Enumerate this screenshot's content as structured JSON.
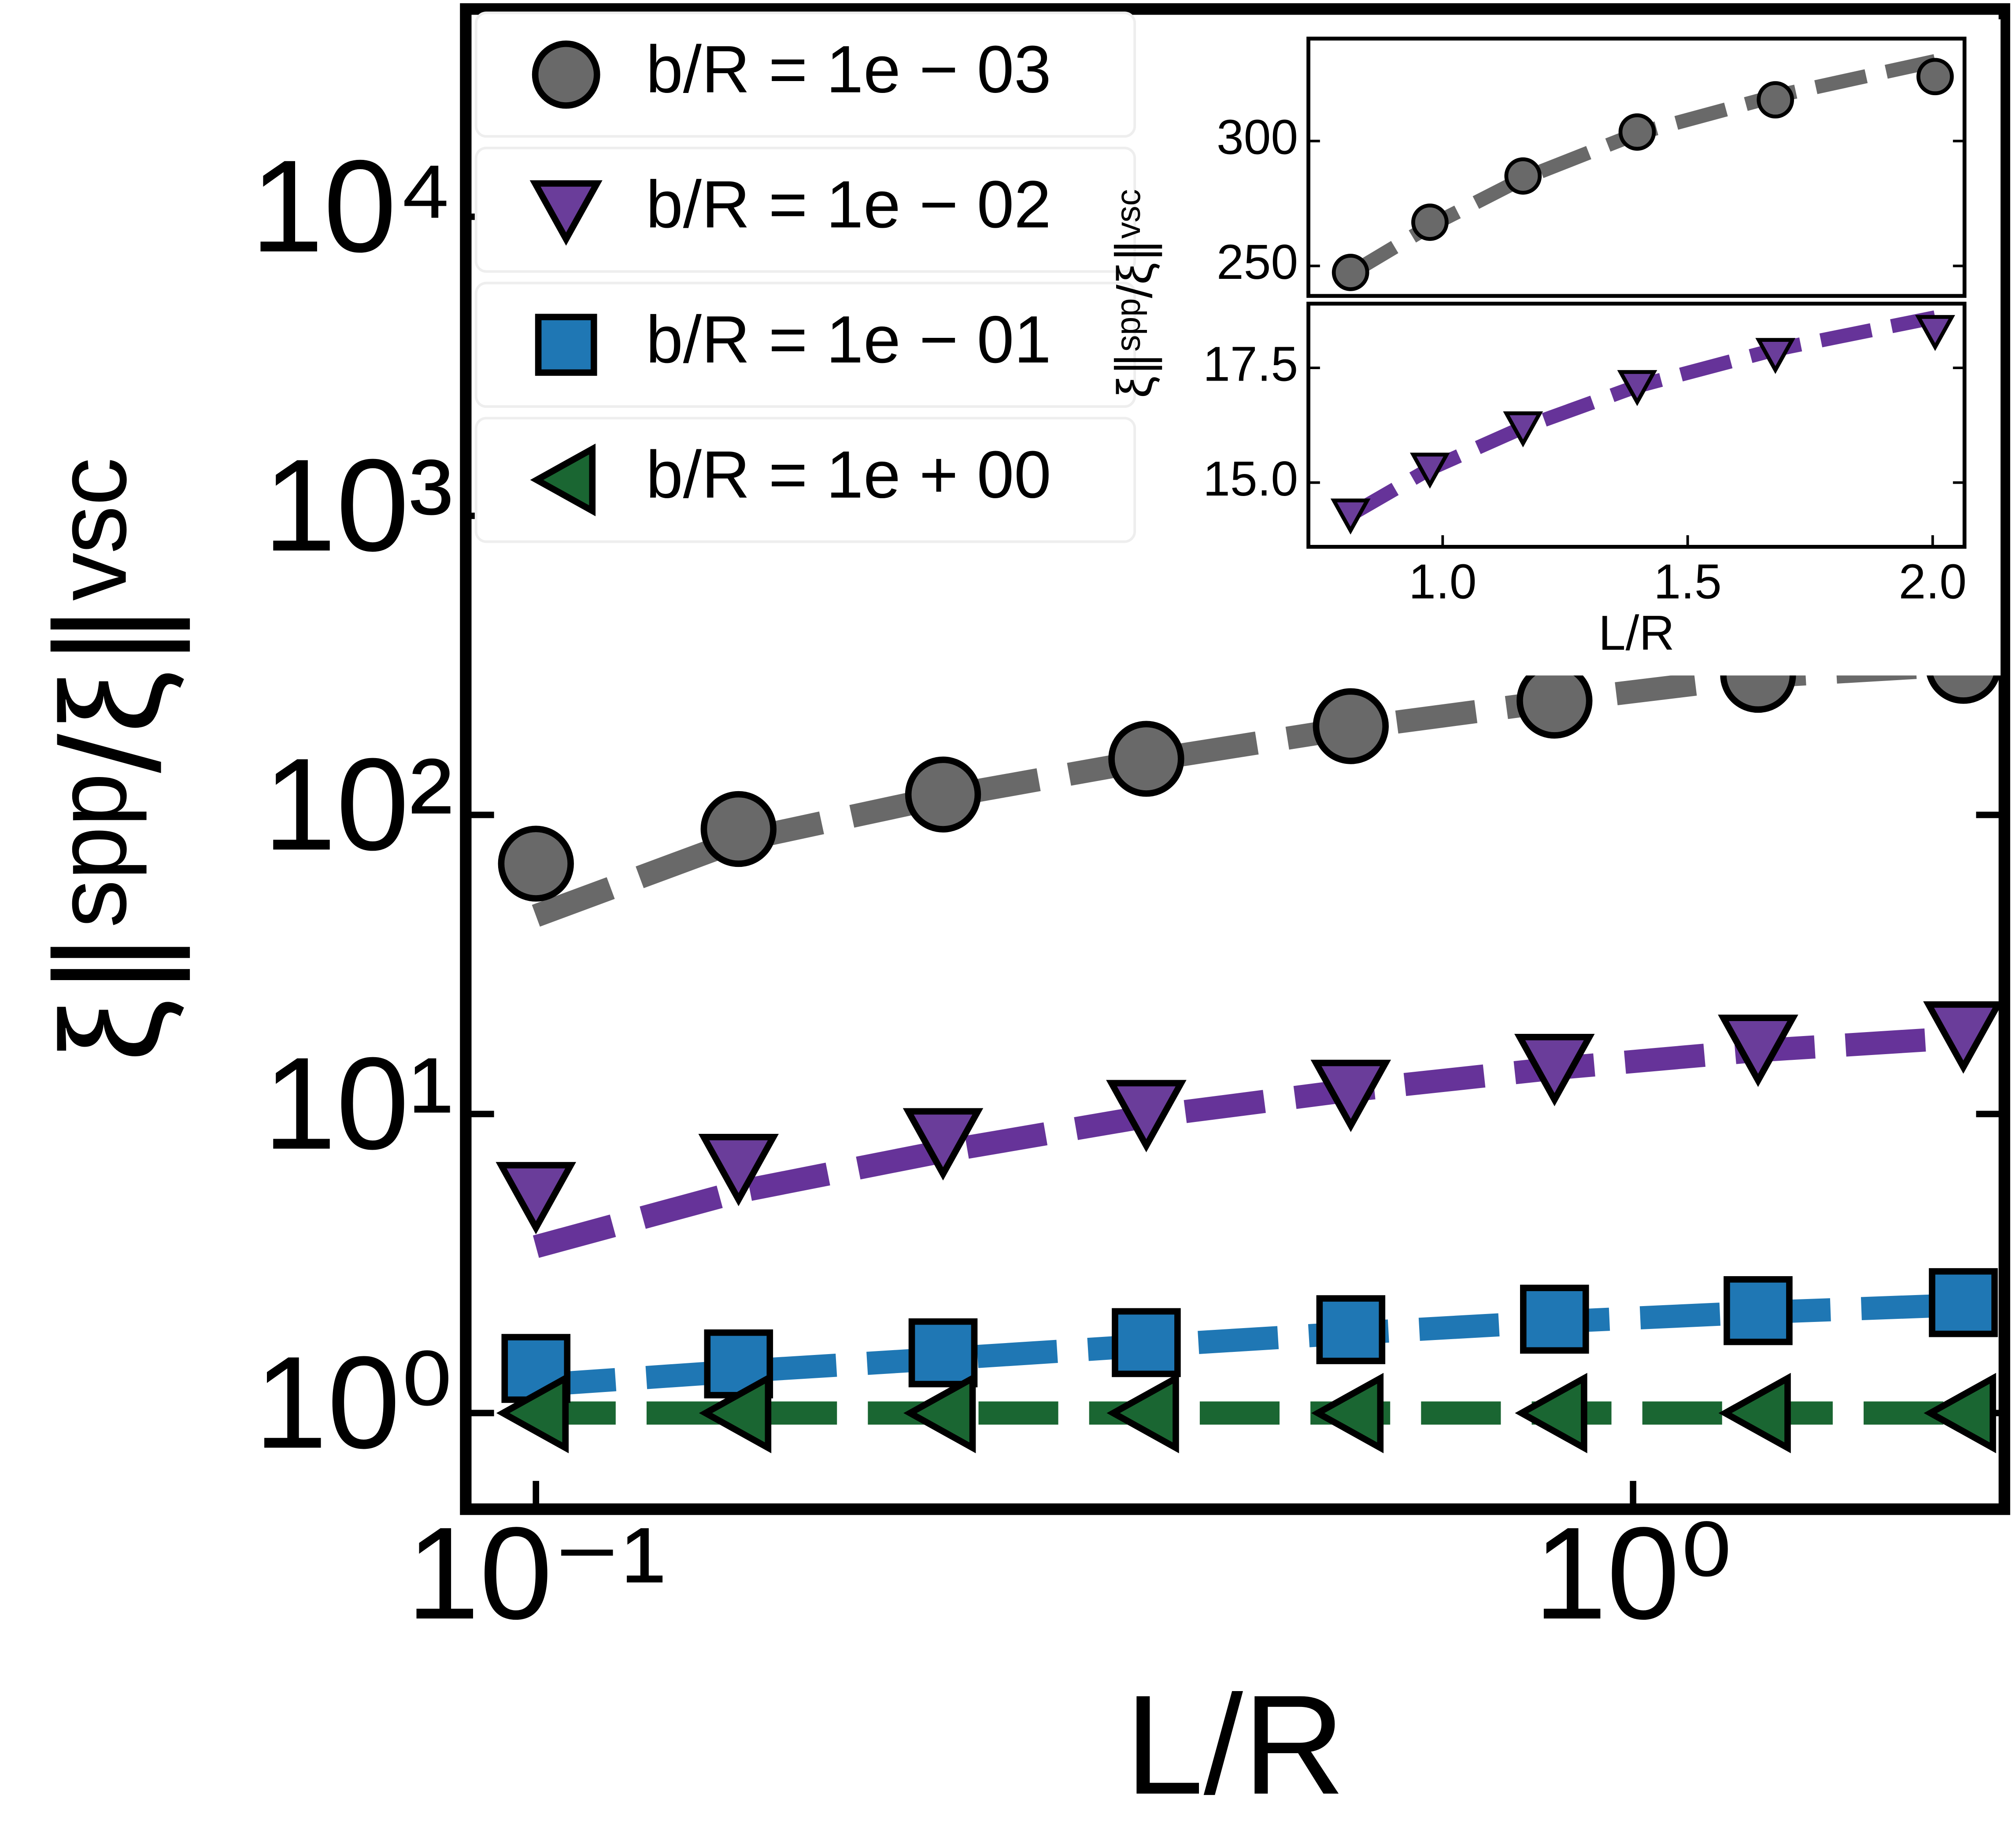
{
  "chart_data": [
    {
      "type": "line",
      "xlog": true,
      "ylog": true,
      "xlabel": "L/R",
      "ylabel": "ξ∥ˢᵖᵖ/ξ∥ᵛˢᶜ",
      "x": [
        0.1,
        0.153,
        0.235,
        0.36,
        0.553,
        0.848,
        1.3,
        2.0
      ],
      "xlim": [
        0.0863,
        2.18
      ],
      "xticks": [
        {
          "value": 0.1,
          "label": "10⁻¹"
        },
        {
          "value": 1,
          "label": "10⁰"
        }
      ],
      "ylim": [
        0.477,
        49500
      ],
      "yticks": [
        {
          "value": 1,
          "label": "10⁰"
        },
        {
          "value": 10,
          "label": "10¹"
        },
        {
          "value": 100,
          "label": "10²"
        },
        {
          "value": 1000,
          "label": "10³"
        },
        {
          "value": 10000,
          "label": "10⁴"
        }
      ],
      "legend": "upper left",
      "series": [
        {
          "name": "b/R = 1e − 03",
          "color": "#696969",
          "line_color": "#696969",
          "marker": "circle",
          "values": [
            68.7,
            89.7,
            117,
            154,
            198,
            241,
            294,
            315
          ],
          "fit": [
            46,
            82,
            115,
            152,
            195,
            240,
            290,
            318
          ]
        },
        {
          "name": "b/R = 1e − 02",
          "color": "#6a3d9a",
          "line_color": "#663399",
          "marker": "triangle-down",
          "values": [
            5.37,
            6.67,
            8.13,
            10.1,
            11.8,
            14.4,
            16.7,
            18.5
          ],
          "fit": [
            3.6,
            5.5,
            7.5,
            9.8,
            12,
            14.2,
            16.3,
            18
          ]
        },
        {
          "name": "b/R = 1e − 01",
          "color": "#1f77b4",
          "line_color": "#1f77b4",
          "marker": "square",
          "values": [
            1.41,
            1.46,
            1.59,
            1.72,
            1.9,
            2.06,
            2.2,
            2.34
          ],
          "fit": [
            1.24,
            1.38,
            1.52,
            1.68,
            1.85,
            2.02,
            2.17,
            2.3
          ]
        },
        {
          "name": "b/R = 1e + 00",
          "color": "#1a6632",
          "line_color": "#1a6632",
          "marker": "triangle-left",
          "values": [
            1,
            1,
            1,
            1,
            1,
            1,
            1,
            1
          ],
          "fit": [
            1,
            1,
            1,
            1,
            1,
            1,
            1,
            1
          ]
        }
      ]
    },
    {
      "type": "line",
      "ylabel": "ξ∥ˢᵖᵖ/ξ∥ᵛˢᶜ",
      "x": [
        0.812,
        0.974,
        1.164,
        1.397,
        1.679,
        2.005
      ],
      "xlim": [
        0.726,
        2.065
      ],
      "ylim": [
        238,
        341
      ],
      "yticks": [
        250,
        300
      ],
      "series": [
        {
          "color": "#696969",
          "line_color": "#696969",
          "marker": "circle",
          "values": [
            247.4,
            267.5,
            286,
            303.6,
            316.5,
            325.8
          ],
          "fit": [
            247,
            266,
            285,
            303,
            318,
            332
          ]
        }
      ]
    },
    {
      "type": "line",
      "xlabel": "L/R",
      "x": [
        0.812,
        0.974,
        1.164,
        1.397,
        1.679,
        2.005
      ],
      "xlim": [
        0.726,
        2.065
      ],
      "xticks": [
        {
          "value": 1,
          "label": "1.0"
        },
        1.5,
        {
          "value": 2,
          "label": "2.0"
        }
      ],
      "ylim": [
        13.6,
        18.9
      ],
      "yticks": [
        {
          "value": 15,
          "label": "15.0"
        },
        17.5
      ],
      "series": [
        {
          "color": "#6a3d9a",
          "line_color": "#663399",
          "marker": "triangle-down",
          "values": [
            14.3,
            15.3,
            16.2,
            17.1,
            17.8,
            18.3
          ],
          "fit": [
            14.3,
            15.3,
            16.2,
            17.1,
            17.9,
            18.6
          ]
        }
      ]
    }
  ]
}
